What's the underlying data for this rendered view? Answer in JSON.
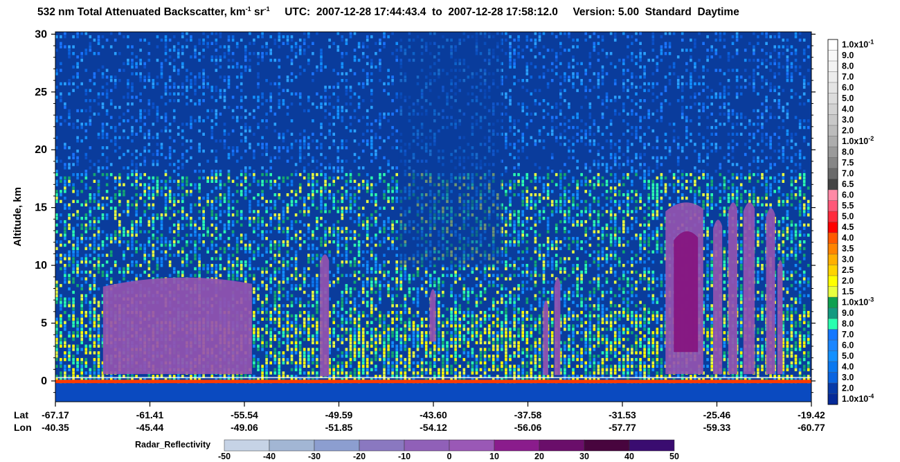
{
  "title": {
    "product": "532 nm Total Attenuated Backscatter, km",
    "unit_exp1": "-1",
    "unit_mid": " sr",
    "unit_exp2": "-1",
    "utc_label": "UTC:",
    "start": "2007-12-28 17:44:43.4",
    "to": "to",
    "end": "2007-12-28 17:58:12.0",
    "version_label": "Version: 5.00",
    "mode": "Standard",
    "daynight": "Daytime"
  },
  "chart_data": {
    "type": "heatmap",
    "ylabel": "Altitude, km",
    "ylim": [
      -1.8,
      30.2
    ],
    "yticks": [
      0,
      5,
      10,
      15,
      20,
      25,
      30
    ],
    "x_row_labels": [
      "Lat",
      "Lon"
    ],
    "x_ticks": [
      {
        "lat": "-67.17",
        "lon": "-40.35"
      },
      {
        "lat": "-61.41",
        "lon": "-45.44"
      },
      {
        "lat": "-55.54",
        "lon": "-49.06"
      },
      {
        "lat": "-49.59",
        "lon": "-51.85"
      },
      {
        "lat": "-43.60",
        "lon": "-54.12"
      },
      {
        "lat": "-37.58",
        "lon": "-56.06"
      },
      {
        "lat": "-31.53",
        "lon": "-57.77"
      },
      {
        "lat": "-25.46",
        "lon": "-59.33"
      },
      {
        "lat": "-19.42",
        "lon": "-60.77"
      }
    ],
    "backscatter_colorbar": [
      {
        "label": "1.0x10",
        "exp": "-1",
        "color": "#ffffff"
      },
      {
        "label": "9.0",
        "color": "#f8f8f8"
      },
      {
        "label": "8.0",
        "color": "#f2f2f2"
      },
      {
        "label": "7.0",
        "color": "#ececec"
      },
      {
        "label": "6.0",
        "color": "#e4e4e4"
      },
      {
        "label": "5.0",
        "color": "#dcdcdc"
      },
      {
        "label": "4.0",
        "color": "#d2d2d2"
      },
      {
        "label": "3.0",
        "color": "#c8c8c8"
      },
      {
        "label": "2.0",
        "color": "#bcbcbc"
      },
      {
        "label": "1.0x10",
        "exp": "-2",
        "color": "#adadad"
      },
      {
        "label": "8.0",
        "color": "#9a9a9a"
      },
      {
        "label": "7.5",
        "color": "#868686"
      },
      {
        "label": "7.0",
        "color": "#6a6a6a"
      },
      {
        "label": "6.5",
        "color": "#444444"
      },
      {
        "label": "6.0",
        "color": "#ff8aa6"
      },
      {
        "label": "5.5",
        "color": "#ff5878"
      },
      {
        "label": "5.0",
        "color": "#ff2a3c"
      },
      {
        "label": "4.5",
        "color": "#ff0000"
      },
      {
        "label": "4.0",
        "color": "#ff5a00"
      },
      {
        "label": "3.5",
        "color": "#ff8400"
      },
      {
        "label": "3.0",
        "color": "#ffb000"
      },
      {
        "label": "2.5",
        "color": "#ffd400"
      },
      {
        "label": "2.0",
        "color": "#ffff00"
      },
      {
        "label": "1.5",
        "color": "#e8ff40"
      },
      {
        "label": "1.0x10",
        "exp": "-3",
        "color": "#0ea050"
      },
      {
        "label": "9.0",
        "color": "#129a80"
      },
      {
        "label": "8.0",
        "color": "#2affb0"
      },
      {
        "label": "7.0",
        "color": "#1478ff"
      },
      {
        "label": "6.0",
        "color": "#1a86ff"
      },
      {
        "label": "5.0",
        "color": "#1390ff"
      },
      {
        "label": "4.0",
        "color": "#0a78f0"
      },
      {
        "label": "3.0",
        "color": "#0a64e0"
      },
      {
        "label": "2.0",
        "color": "#073aa8"
      },
      {
        "label": "1.0x10",
        "exp": "-4",
        "color": "#062a98"
      }
    ],
    "radar_colorbar": {
      "label": "Radar_Reflectivity",
      "ticks": [
        "-50",
        "-40",
        "-30",
        "-20",
        "-10",
        "0",
        "10",
        "20",
        "30",
        "40",
        "50"
      ],
      "colors": [
        "#c6d3e6",
        "#a2b6d4",
        "#8c9ed0",
        "#8a78c0",
        "#9060b8",
        "#9a58b6",
        "#8a1c8c",
        "#6a0e6a",
        "#48053e",
        "#3a0c70"
      ]
    },
    "background_color": "#0a3c9c",
    "radar_cloud_color": "#9454b0",
    "radar_core_color": "#86157f",
    "surface_color": "#ff3a00"
  }
}
